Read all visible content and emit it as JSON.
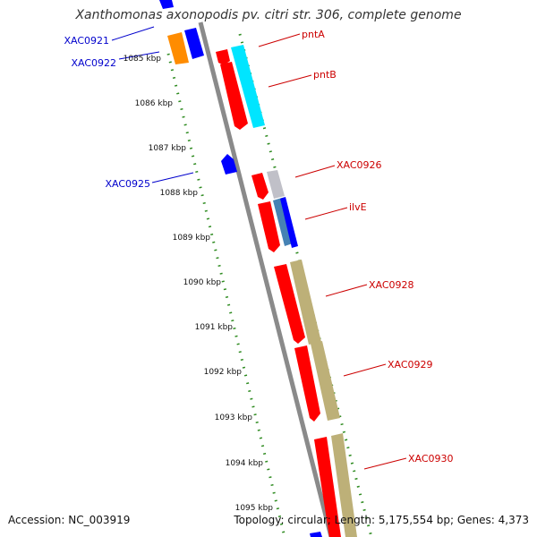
{
  "header": {
    "title": "Xanthomonas axonopodis pv. citri str. 306, complete genome"
  },
  "footer": {
    "accession": "Accession: NC_003919",
    "stats": "Topology: circular; Length: 5,175,554 bp; Genes: 4,373"
  },
  "colors": {
    "backbone": "#8a8a8a",
    "ticks": "#2e8b20",
    "forward_label": "#cc0000",
    "reverse_label": "#0000cc"
  },
  "map": {
    "tick_labels": [
      "1085 kbp",
      "1086 kbp",
      "1087 kbp",
      "1088 kbp",
      "1089 kbp",
      "1090 kbp",
      "1091 kbp",
      "1092 kbp",
      "1093 kbp",
      "1094 kbp",
      "1095 kbp"
    ],
    "genes": [
      {
        "label": "XAC0921",
        "strand": "reverse",
        "color": "#ff8c00"
      },
      {
        "label": "XAC0922",
        "strand": "reverse",
        "color": "#0000ff"
      },
      {
        "label": "pntA",
        "strand": "forward",
        "color": "#ff0000"
      },
      {
        "label": "pntB",
        "strand": "forward",
        "color": "#ff0000"
      },
      {
        "label": "XAC0925",
        "strand": "reverse",
        "color": "#0000ff"
      },
      {
        "label": "XAC0926",
        "strand": "forward",
        "color": "#ff0000"
      },
      {
        "label": "ilvE",
        "strand": "forward",
        "color": "#ff0000"
      },
      {
        "label": "XAC0928",
        "strand": "forward",
        "color": "#ff0000"
      },
      {
        "label": "XAC0929",
        "strand": "forward",
        "color": "#ff0000"
      },
      {
        "label": "XAC0930",
        "strand": "forward",
        "color": "#ff0000"
      }
    ]
  }
}
